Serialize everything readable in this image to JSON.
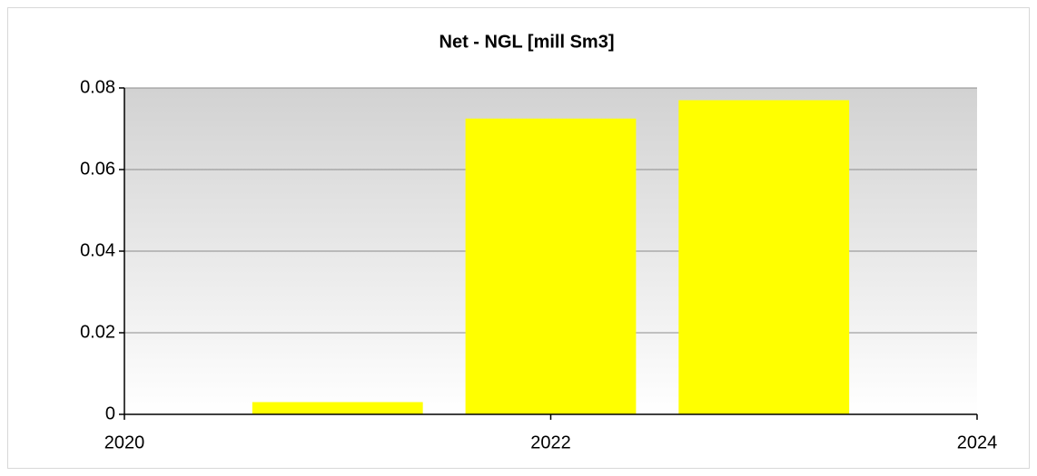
{
  "chart_data": {
    "type": "bar",
    "title": "Net - NGL [mill Sm3]",
    "x": [
      2021,
      2022,
      2023
    ],
    "values": [
      0.003,
      0.0725,
      0.077
    ],
    "color": "#ffff00",
    "xlim": [
      2020,
      2024
    ],
    "xticks": [
      2020,
      2022,
      2024
    ],
    "ylim": [
      0,
      0.08
    ],
    "yticks": [
      0,
      0.02,
      0.04,
      0.06,
      0.08
    ],
    "grid": true
  }
}
